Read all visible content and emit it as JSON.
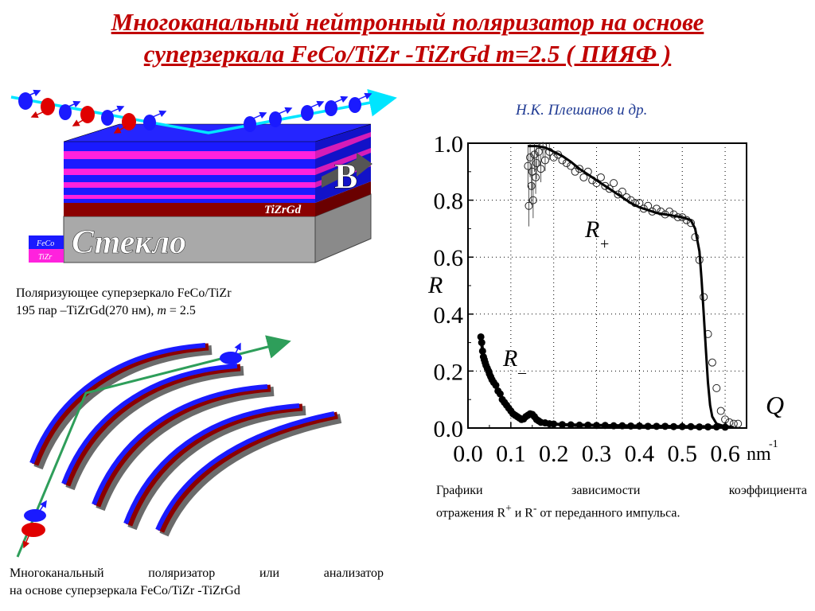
{
  "title": {
    "line1": "Многоканальный нейтронный  поляризатор на основе",
    "line2": "суперзеркала FeCo/TiZr -TiZrGd m=2.5 ( ПИЯФ )"
  },
  "authors": "Н.К. Плешанов и др.",
  "diagram1": {
    "glass_label": "Стекло",
    "tizrgd_label": "TiZrGd",
    "b_label": "B",
    "legend_feco": "FeCo",
    "legend_tizr": "TiZr",
    "colors": {
      "blue": "#1a1aff",
      "magenta": "#ff22dd",
      "darkred": "#8b0000",
      "glass": "#a9a9a9",
      "beam": "#00e5ff"
    }
  },
  "caption1": {
    "line1": "Поляризующее суперзеркало FeCo/TiZr",
    "line2_a": "195 пар –TiZrGd(270 нм), ",
    "line2_m": "m",
    "line2_b": " = 2.5"
  },
  "caption3": {
    "line1": "Многоканальный поляризатор или анализатор",
    "line2": "на основе суперзеркала FeCo/TiZr -TiZrGd"
  },
  "caption2": {
    "w1": "Графики",
    "w2": "зависимости",
    "w3": "коэффициента",
    "line2_a": "отражения R",
    "sup_plus": "+",
    "line2_b": "  и R",
    "sup_minus": "-",
    "line2_c": " от переданного импульса."
  },
  "chart_data": {
    "type": "scatter",
    "xlabel": "Q",
    "xunit": "nm",
    "xunit_exp": "-1",
    "ylabel": "R",
    "xlim": [
      0.0,
      0.65
    ],
    "ylim": [
      0.0,
      1.0
    ],
    "xticks": [
      "0.0",
      "0.1",
      "0.2",
      "0.3",
      "0.4",
      "0.5",
      "0.6"
    ],
    "yticks": [
      "0.0",
      "0.2",
      "0.4",
      "0.6",
      "0.8",
      "1.0"
    ],
    "grid": true,
    "series": [
      {
        "name": "R+",
        "label_main": "R",
        "label_sub": "+",
        "fit_x": [
          0.14,
          0.16,
          0.18,
          0.2,
          0.22,
          0.24,
          0.26,
          0.28,
          0.3,
          0.32,
          0.34,
          0.36,
          0.38,
          0.4,
          0.42,
          0.44,
          0.46,
          0.48,
          0.5,
          0.52,
          0.53,
          0.54,
          0.545,
          0.55,
          0.555,
          0.56,
          0.565,
          0.57,
          0.58,
          0.6,
          0.62
        ],
        "fit_y": [
          0.99,
          0.99,
          0.985,
          0.97,
          0.955,
          0.935,
          0.91,
          0.89,
          0.87,
          0.85,
          0.83,
          0.81,
          0.79,
          0.775,
          0.765,
          0.755,
          0.75,
          0.745,
          0.74,
          0.73,
          0.7,
          0.62,
          0.52,
          0.4,
          0.28,
          0.16,
          0.08,
          0.04,
          0.015,
          0.005,
          0.003
        ],
        "points_x": [
          0.14,
          0.142,
          0.145,
          0.148,
          0.15,
          0.152,
          0.155,
          0.158,
          0.16,
          0.165,
          0.17,
          0.175,
          0.18,
          0.19,
          0.2,
          0.21,
          0.22,
          0.23,
          0.24,
          0.25,
          0.26,
          0.27,
          0.28,
          0.29,
          0.3,
          0.31,
          0.32,
          0.33,
          0.34,
          0.35,
          0.36,
          0.37,
          0.38,
          0.39,
          0.4,
          0.41,
          0.42,
          0.43,
          0.44,
          0.45,
          0.46,
          0.47,
          0.48,
          0.49,
          0.5,
          0.51,
          0.52,
          0.53,
          0.54,
          0.55,
          0.56,
          0.57,
          0.58,
          0.59,
          0.6,
          0.61,
          0.62,
          0.63
        ],
        "points_y": [
          0.92,
          0.78,
          0.95,
          0.85,
          0.9,
          0.8,
          0.96,
          0.88,
          0.93,
          0.97,
          0.91,
          0.99,
          0.94,
          0.97,
          0.95,
          0.96,
          0.94,
          0.93,
          0.92,
          0.9,
          0.91,
          0.88,
          0.9,
          0.87,
          0.86,
          0.88,
          0.85,
          0.84,
          0.86,
          0.82,
          0.83,
          0.81,
          0.8,
          0.79,
          0.79,
          0.77,
          0.78,
          0.76,
          0.77,
          0.76,
          0.75,
          0.76,
          0.75,
          0.74,
          0.74,
          0.73,
          0.72,
          0.67,
          0.59,
          0.46,
          0.33,
          0.23,
          0.14,
          0.06,
          0.03,
          0.02,
          0.015,
          0.015
        ]
      },
      {
        "name": "R-",
        "label_main": "R",
        "label_sub": "–",
        "x": [
          0.03,
          0.032,
          0.034,
          0.036,
          0.038,
          0.04,
          0.042,
          0.045,
          0.048,
          0.05,
          0.053,
          0.056,
          0.06,
          0.065,
          0.07,
          0.075,
          0.08,
          0.085,
          0.09,
          0.095,
          0.1,
          0.105,
          0.11,
          0.115,
          0.12,
          0.125,
          0.13,
          0.135,
          0.14,
          0.145,
          0.15,
          0.155,
          0.16,
          0.165,
          0.17,
          0.18,
          0.19,
          0.2,
          0.22,
          0.24,
          0.26,
          0.28,
          0.3,
          0.32,
          0.34,
          0.36,
          0.38,
          0.4,
          0.42,
          0.44,
          0.46,
          0.48,
          0.5,
          0.52,
          0.54,
          0.56,
          0.58,
          0.6
        ],
        "y": [
          0.32,
          0.3,
          0.27,
          0.25,
          0.24,
          0.23,
          0.22,
          0.21,
          0.2,
          0.19,
          0.18,
          0.17,
          0.16,
          0.15,
          0.13,
          0.12,
          0.1,
          0.09,
          0.08,
          0.07,
          0.06,
          0.05,
          0.045,
          0.04,
          0.035,
          0.03,
          0.032,
          0.04,
          0.045,
          0.05,
          0.048,
          0.04,
          0.03,
          0.025,
          0.02,
          0.018,
          0.015,
          0.014,
          0.012,
          0.011,
          0.01,
          0.01,
          0.009,
          0.009,
          0.008,
          0.008,
          0.007,
          0.007,
          0.006,
          0.006,
          0.006,
          0.005,
          0.005,
          0.005,
          0.004,
          0.004,
          0.004,
          0.003
        ]
      }
    ]
  }
}
